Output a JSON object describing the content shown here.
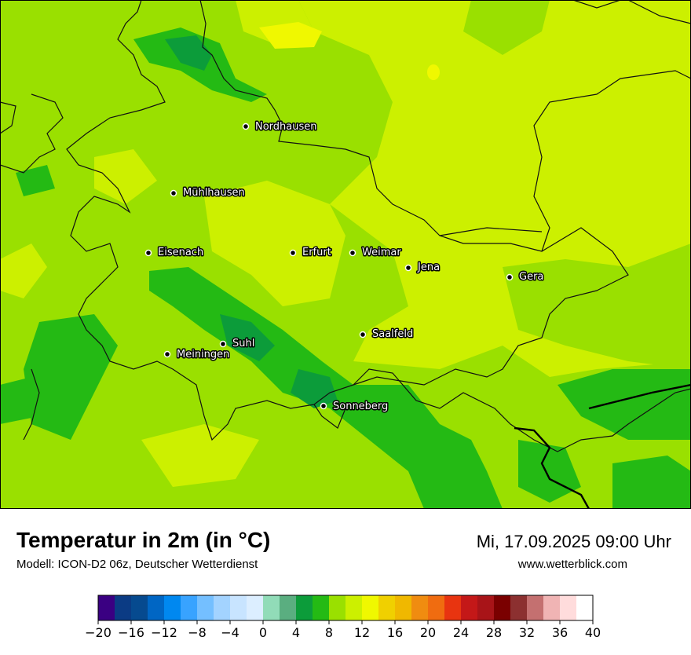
{
  "header": {
    "title": "Temperatur in 2m (in °C)",
    "model_source": "Modell: ICON-D2 06z, Deutscher Wetterdienst",
    "datetime": "Mi, 17.09.2025 09:00 Uhr",
    "website": "www.wetterblick.com"
  },
  "map": {
    "background_color": "#ccf000",
    "cities": [
      {
        "name": "Nordhausen"
      },
      {
        "name": "Mühlhausen"
      },
      {
        "name": "Eisenach"
      },
      {
        "name": "Erfurt"
      },
      {
        "name": "Weimar"
      },
      {
        "name": "Jena"
      },
      {
        "name": "Gera"
      },
      {
        "name": "Saalfeld"
      },
      {
        "name": "Suhl"
      },
      {
        "name": "Meiningen"
      },
      {
        "name": "Sonneberg"
      }
    ]
  },
  "legend": {
    "min": -20,
    "max": 40,
    "step": 2,
    "tick_labels": [
      "−20",
      "−16",
      "−12",
      "−8",
      "−4",
      "0",
      "4",
      "8",
      "12",
      "16",
      "20",
      "24",
      "28",
      "32",
      "36",
      "40"
    ],
    "colors": [
      "#3a0082",
      "#0b3b84",
      "#064a8f",
      "#0066c4",
      "#0088f0",
      "#38a3ff",
      "#74bfff",
      "#a3d3ff",
      "#c8e4ff",
      "#dceeff",
      "#91dcb8",
      "#5aae80",
      "#0c9c3a",
      "#24ba14",
      "#9ae000",
      "#ccf000",
      "#f0f800",
      "#f0d000",
      "#f0b800",
      "#f08c10",
      "#f06c10",
      "#e83410",
      "#c41818",
      "#a81418",
      "#7a0000",
      "#8c3030",
      "#c47070",
      "#f0b4b4",
      "#ffdcdc",
      "#ffffff"
    ]
  }
}
